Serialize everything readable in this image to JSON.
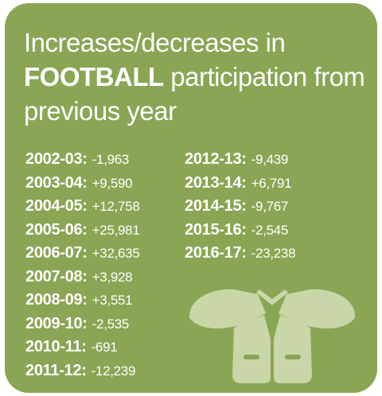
{
  "title": {
    "line1": "Increases/decreases in",
    "line2_bold": "FOOTBALL",
    "line2_rest": " participation from",
    "line3": "previous year"
  },
  "left_column": [
    {
      "season": "2002-03:",
      "change": "-1,963"
    },
    {
      "season": "2003-04:",
      "change": "+9,590"
    },
    {
      "season": "2004-05:",
      "change": "+12,758"
    },
    {
      "season": "2005-06:",
      "change": "+25,981"
    },
    {
      "season": "2006-07:",
      "change": "+32,635"
    },
    {
      "season": "2007-08:",
      "change": "+3,928"
    },
    {
      "season": "2008-09:",
      "change": "+3,551"
    },
    {
      "season": "2009-10:",
      "change": "-2,535"
    },
    {
      "season": "2010-11:",
      "change": "-691"
    },
    {
      "season": "2011-12:",
      "change": "-12,239"
    }
  ],
  "right_column": [
    {
      "season": "2012-13:",
      "change": "-9,439"
    },
    {
      "season": "2013-14:",
      "change": "+6,791"
    },
    {
      "season": "2014-15:",
      "change": "-9,767"
    },
    {
      "season": "2015-16:",
      "change": "-2,545"
    },
    {
      "season": "2016-17:",
      "change": "-23,238"
    }
  ],
  "colors": {
    "card_background": "#8aa554",
    "text": "#ffffff",
    "icon_fill": "#c8d6a8"
  },
  "icon": "shoulder-pads-icon"
}
